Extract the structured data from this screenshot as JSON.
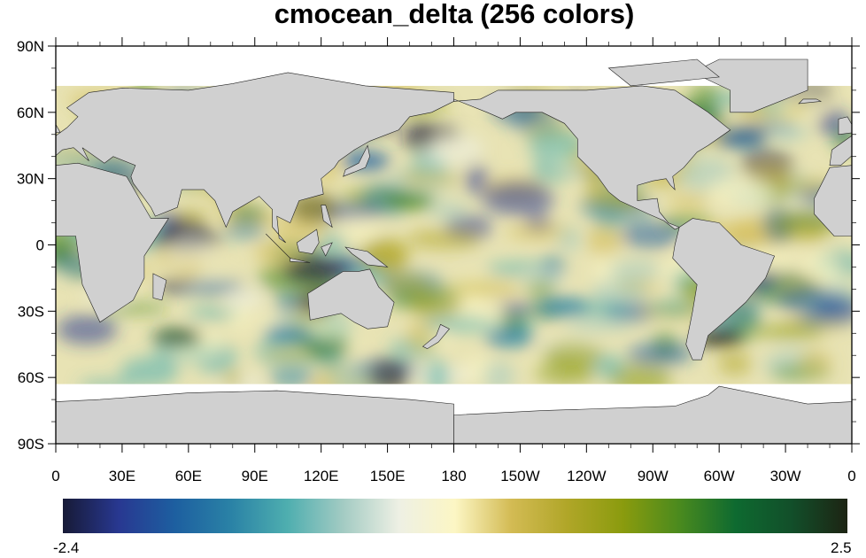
{
  "title": "cmocean_delta (256 colors)",
  "map": {
    "projection": "cylindrical equidistant",
    "land_color": "#d0d0d0",
    "missing_color": "#ffffff",
    "lat_labels": [
      "90N",
      "60N",
      "30N",
      "0",
      "30S",
      "60S",
      "90S"
    ],
    "lon_labels": [
      "0",
      "30E",
      "60E",
      "90E",
      "120E",
      "150E",
      "180",
      "150W",
      "120W",
      "90W",
      "60W",
      "30W",
      "0"
    ]
  },
  "colorbar": {
    "min_label": "-2.4",
    "max_label": "2.5",
    "min": -2.4,
    "max": 2.5,
    "colors": [
      "#171a36",
      "#283891",
      "#1d5fa0",
      "#2a82a6",
      "#4eaeaf",
      "#a3cbc3",
      "#eef0e4",
      "#fcf6c4",
      "#d3bb54",
      "#b0a628",
      "#8a9b0e",
      "#4a8a1e",
      "#0e6a30",
      "#124f2a",
      "#1d2413"
    ]
  }
}
